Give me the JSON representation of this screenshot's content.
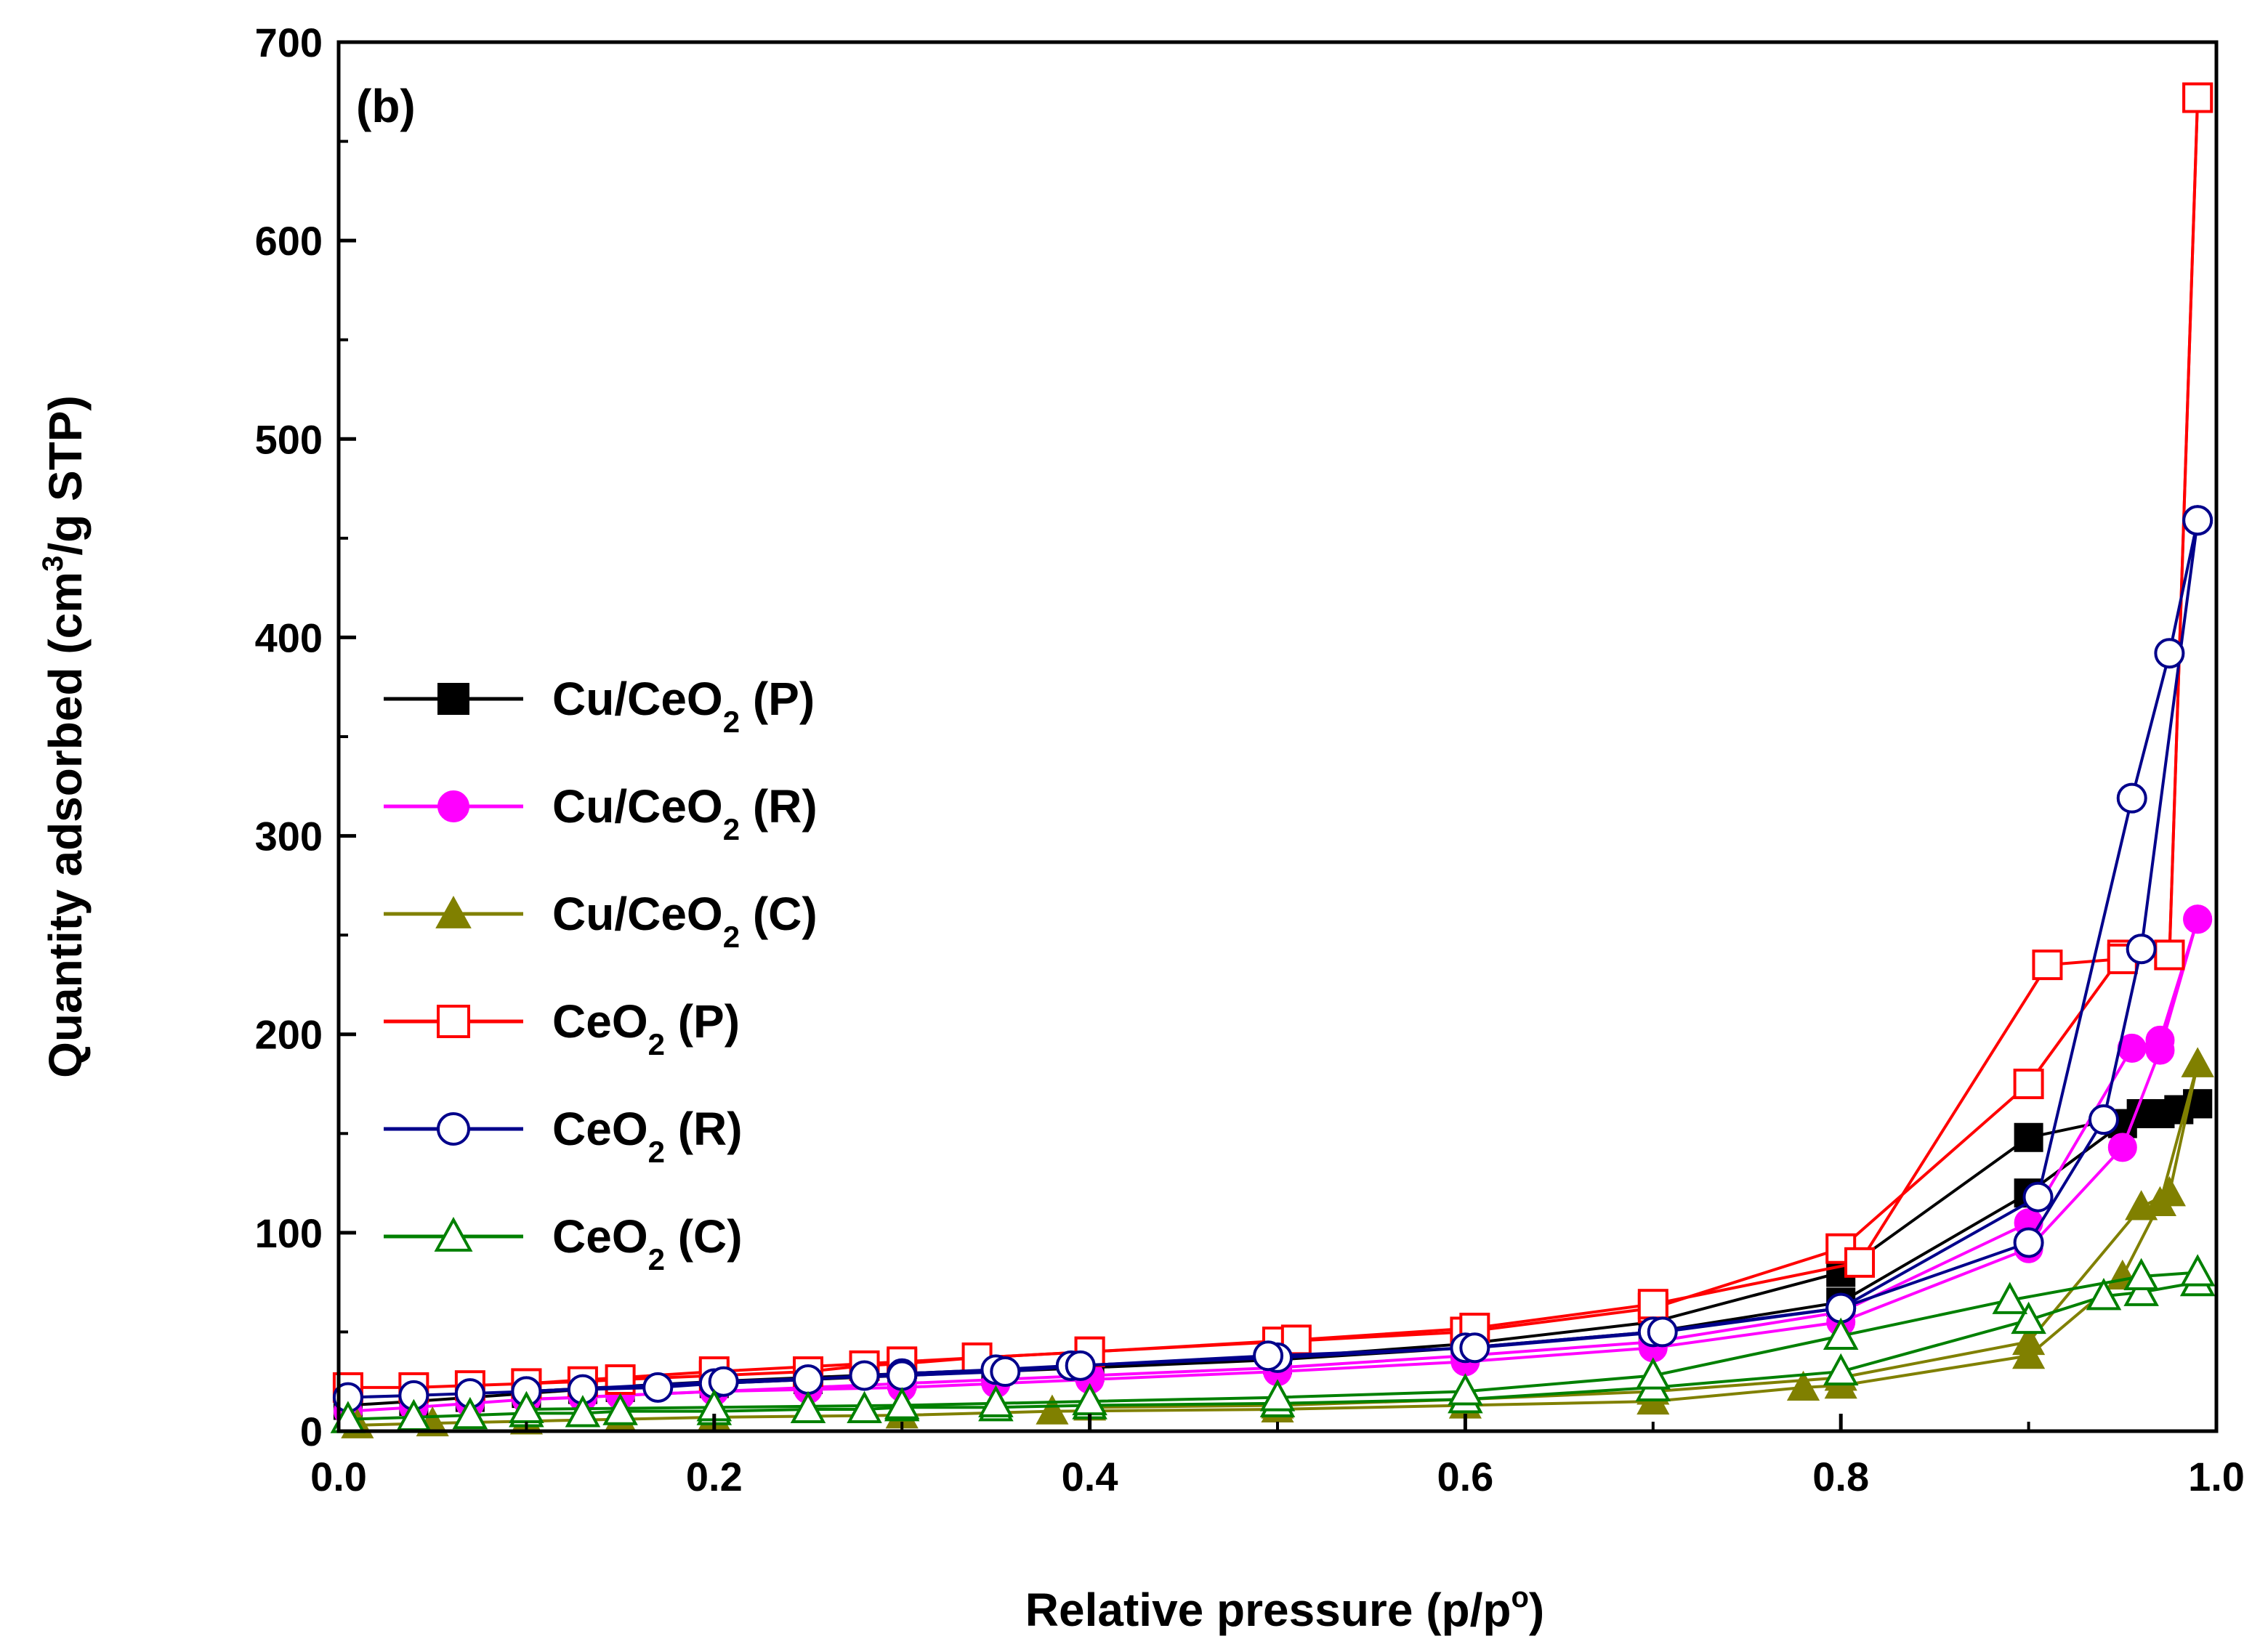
{
  "chart_data": {
    "type": "line",
    "panel_label": "(b)",
    "xlabel": "Relative pressure (p/p°)",
    "xlabel_parts": {
      "main": "Relative pressure (p/p",
      "sup": "o",
      "tail": ")"
    },
    "ylabel": "Quantity adsorbed (cm³/g STP)",
    "ylabel_parts": {
      "main": "Quantity adsorbed (cm",
      "sup": "3",
      "tail": "/g STP)"
    },
    "xlim": [
      0.0,
      1.0
    ],
    "ylim": [
      0,
      700
    ],
    "xticks": [
      0.0,
      0.2,
      0.4,
      0.6,
      0.8,
      1.0
    ],
    "xtick_labels": [
      "0.0",
      "0.2",
      "0.4",
      "0.6",
      "0.8",
      "1.0"
    ],
    "yticks": [
      0,
      100,
      200,
      300,
      400,
      500,
      600,
      700
    ],
    "ytick_labels": [
      "0",
      "100",
      "200",
      "300",
      "400",
      "500",
      "600",
      "700"
    ],
    "legend_position": "center-left",
    "series": [
      {
        "name": "Cu/CeO2 (P)",
        "base": "Cu/CeO",
        "sub": "2",
        "suffix": " (P)",
        "color": "#000000",
        "marker": "square",
        "filled": true,
        "adsorption": {
          "x": [
            0.005,
            0.04,
            0.07,
            0.1,
            0.13,
            0.15,
            0.2,
            0.25,
            0.3,
            0.35,
            0.4,
            0.5,
            0.6,
            0.7,
            0.8,
            0.9,
            0.95,
            0.97,
            0.99
          ],
          "y": [
            13,
            15,
            17,
            19,
            21,
            22,
            24,
            26,
            28,
            30,
            32,
            36,
            42,
            50,
            65,
            120,
            155,
            160,
            165
          ]
        },
        "desorption": {
          "x": [
            0.99,
            0.98,
            0.96,
            0.9,
            0.8,
            0.7,
            0.6,
            0.5,
            0.4,
            0.3,
            0.2,
            0.1
          ],
          "y": [
            165,
            162,
            160,
            148,
            80,
            55,
            44,
            37,
            33,
            29,
            25,
            20
          ]
        }
      },
      {
        "name": "Cu/CeO2 (R)",
        "base": "Cu/CeO",
        "sub": "2",
        "suffix": " (R)",
        "color": "#ff00ff",
        "marker": "circle",
        "filled": true,
        "adsorption": {
          "x": [
            0.005,
            0.04,
            0.07,
            0.1,
            0.13,
            0.15,
            0.2,
            0.25,
            0.3,
            0.35,
            0.4,
            0.5,
            0.6,
            0.7,
            0.8,
            0.9,
            0.95,
            0.97,
            0.99
          ],
          "y": [
            10,
            12,
            14,
            16,
            17,
            18,
            20,
            21,
            22,
            24,
            26,
            30,
            35,
            42,
            55,
            92,
            143,
            192,
            258
          ]
        },
        "desorption": {
          "x": [
            0.99,
            0.97,
            0.955,
            0.9,
            0.8,
            0.7,
            0.6,
            0.5,
            0.4,
            0.3,
            0.2,
            0.1
          ],
          "y": [
            258,
            197,
            193,
            105,
            60,
            45,
            38,
            32,
            28,
            24,
            20,
            16
          ]
        }
      },
      {
        "name": "Cu/CeO2 (C)",
        "base": "Cu/CeO",
        "sub": "2",
        "suffix": " (C)",
        "color": "#808000",
        "marker": "triangle",
        "filled": true,
        "adsorption": {
          "x": [
            0.01,
            0.05,
            0.1,
            0.15,
            0.2,
            0.3,
            0.38,
            0.5,
            0.6,
            0.7,
            0.78,
            0.8,
            0.9,
            0.95,
            0.97,
            0.99
          ],
          "y": [
            3,
            4,
            5,
            6,
            7,
            8,
            10,
            11,
            13,
            15,
            22,
            23,
            38,
            78,
            115,
            185
          ]
        },
        "desorption": {
          "x": [
            0.99,
            0.975,
            0.96,
            0.9,
            0.8,
            0.7,
            0.6,
            0.5,
            0.4
          ],
          "y": [
            185,
            120,
            113,
            45,
            27,
            20,
            16,
            13,
            12
          ]
        }
      },
      {
        "name": "CeO2 (P)",
        "base": "CeO",
        "sub": "2",
        "suffix": " (P)",
        "color": "#ff0000",
        "marker": "square",
        "filled": false,
        "adsorption": {
          "x": [
            0.005,
            0.04,
            0.07,
            0.1,
            0.13,
            0.15,
            0.2,
            0.25,
            0.28,
            0.3,
            0.34,
            0.4,
            0.5,
            0.6,
            0.7,
            0.8,
            0.9,
            0.95,
            0.975,
            0.99
          ],
          "y": [
            22,
            22,
            23,
            24,
            25,
            26,
            28,
            30,
            33,
            34,
            37,
            40,
            45,
            50,
            62,
            92,
            175,
            240,
            240,
            672
          ]
        },
        "desorption": {
          "x": [
            0.99,
            0.975,
            0.95,
            0.91,
            0.81,
            0.7,
            0.605,
            0.51,
            0.4,
            0.3,
            0.2,
            0.1
          ],
          "y": [
            672,
            240,
            238,
            235,
            85,
            64,
            52,
            46,
            40,
            35,
            30,
            24
          ]
        }
      },
      {
        "name": "CeO2 (R)",
        "base": "CeO",
        "sub": "2",
        "suffix": " (R)",
        "color": "#00008b",
        "marker": "circle",
        "filled": false,
        "adsorption": {
          "x": [
            0.005,
            0.04,
            0.07,
            0.1,
            0.13,
            0.17,
            0.2,
            0.25,
            0.28,
            0.3,
            0.35,
            0.39,
            0.5,
            0.6,
            0.7,
            0.8,
            0.9,
            0.94,
            0.96,
            0.99
          ],
          "y": [
            17,
            18,
            19,
            20,
            21,
            22,
            24,
            26,
            28,
            29,
            31,
            33,
            37,
            42,
            50,
            62,
            95,
            157,
            243,
            459
          ]
        },
        "desorption": {
          "x": [
            0.99,
            0.975,
            0.955,
            0.905,
            0.8,
            0.705,
            0.605,
            0.495,
            0.395,
            0.355,
            0.3,
            0.205,
            0.1
          ],
          "y": [
            459,
            392,
            319,
            118,
            62,
            50,
            42,
            38,
            33,
            30,
            28,
            25,
            20
          ]
        }
      },
      {
        "name": "CeO2 (C)",
        "base": "CeO",
        "sub": "2",
        "suffix": " (C)",
        "color": "#008000",
        "marker": "triangle",
        "filled": false,
        "adsorption": {
          "x": [
            0.005,
            0.04,
            0.07,
            0.1,
            0.13,
            0.15,
            0.2,
            0.25,
            0.28,
            0.3,
            0.35,
            0.4,
            0.5,
            0.6,
            0.7,
            0.8,
            0.9,
            0.94,
            0.96,
            0.99
          ],
          "y": [
            6,
            7,
            8,
            9,
            9,
            10,
            10,
            11,
            11,
            12,
            12,
            13,
            14,
            16,
            22,
            30,
            56,
            68,
            70,
            75
          ]
        },
        "desorption": {
          "x": [
            0.99,
            0.96,
            0.89,
            0.8,
            0.7,
            0.6,
            0.5,
            0.4,
            0.35,
            0.3,
            0.2,
            0.1
          ],
          "y": [
            80,
            78,
            66,
            48,
            28,
            20,
            17,
            15,
            14,
            13,
            12,
            11
          ]
        }
      }
    ]
  }
}
